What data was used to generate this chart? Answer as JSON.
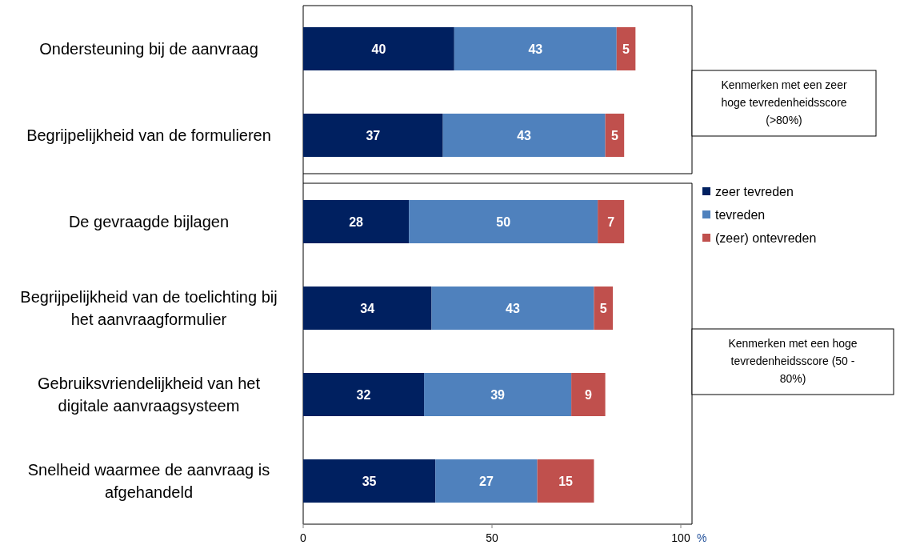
{
  "chart_data": {
    "type": "bar",
    "orientation": "horizontal",
    "stacked": true,
    "data_labels": true,
    "legend": "right",
    "xlabel": "%",
    "categories": [
      "Ondersteuning bij de aanvraag",
      "Begrijpelijkheid van de formulieren",
      "De gevraagde bijlagen",
      "Begrijpelijkheid van de toelichting bij het aanvraagformulier",
      "Gebruiksvriendelijkheid van het digitale aanvraagsysteem",
      "Snelheid waarmee de aanvraag is afgehandeld"
    ],
    "series": [
      {
        "name": "zeer tevreden",
        "color": "#002060",
        "values": [
          40,
          37,
          28,
          34,
          32,
          35
        ]
      },
      {
        "name": "tevreden",
        "color": "#4f81bd",
        "values": [
          43,
          43,
          50,
          43,
          39,
          27
        ]
      },
      {
        "name": "(zeer) ontevreden",
        "color": "#c0504d",
        "values": [
          5,
          5,
          7,
          5,
          9,
          15
        ]
      }
    ],
    "xlim": [
      0,
      100
    ],
    "xticks": [
      0,
      50,
      100
    ],
    "annotations": [
      "Kenmerken met een zeer hoge tevredenheidsscore (>80%)",
      "Kenmerken met een hoge tevredenheidsscore (50 - 80%)"
    ]
  }
}
